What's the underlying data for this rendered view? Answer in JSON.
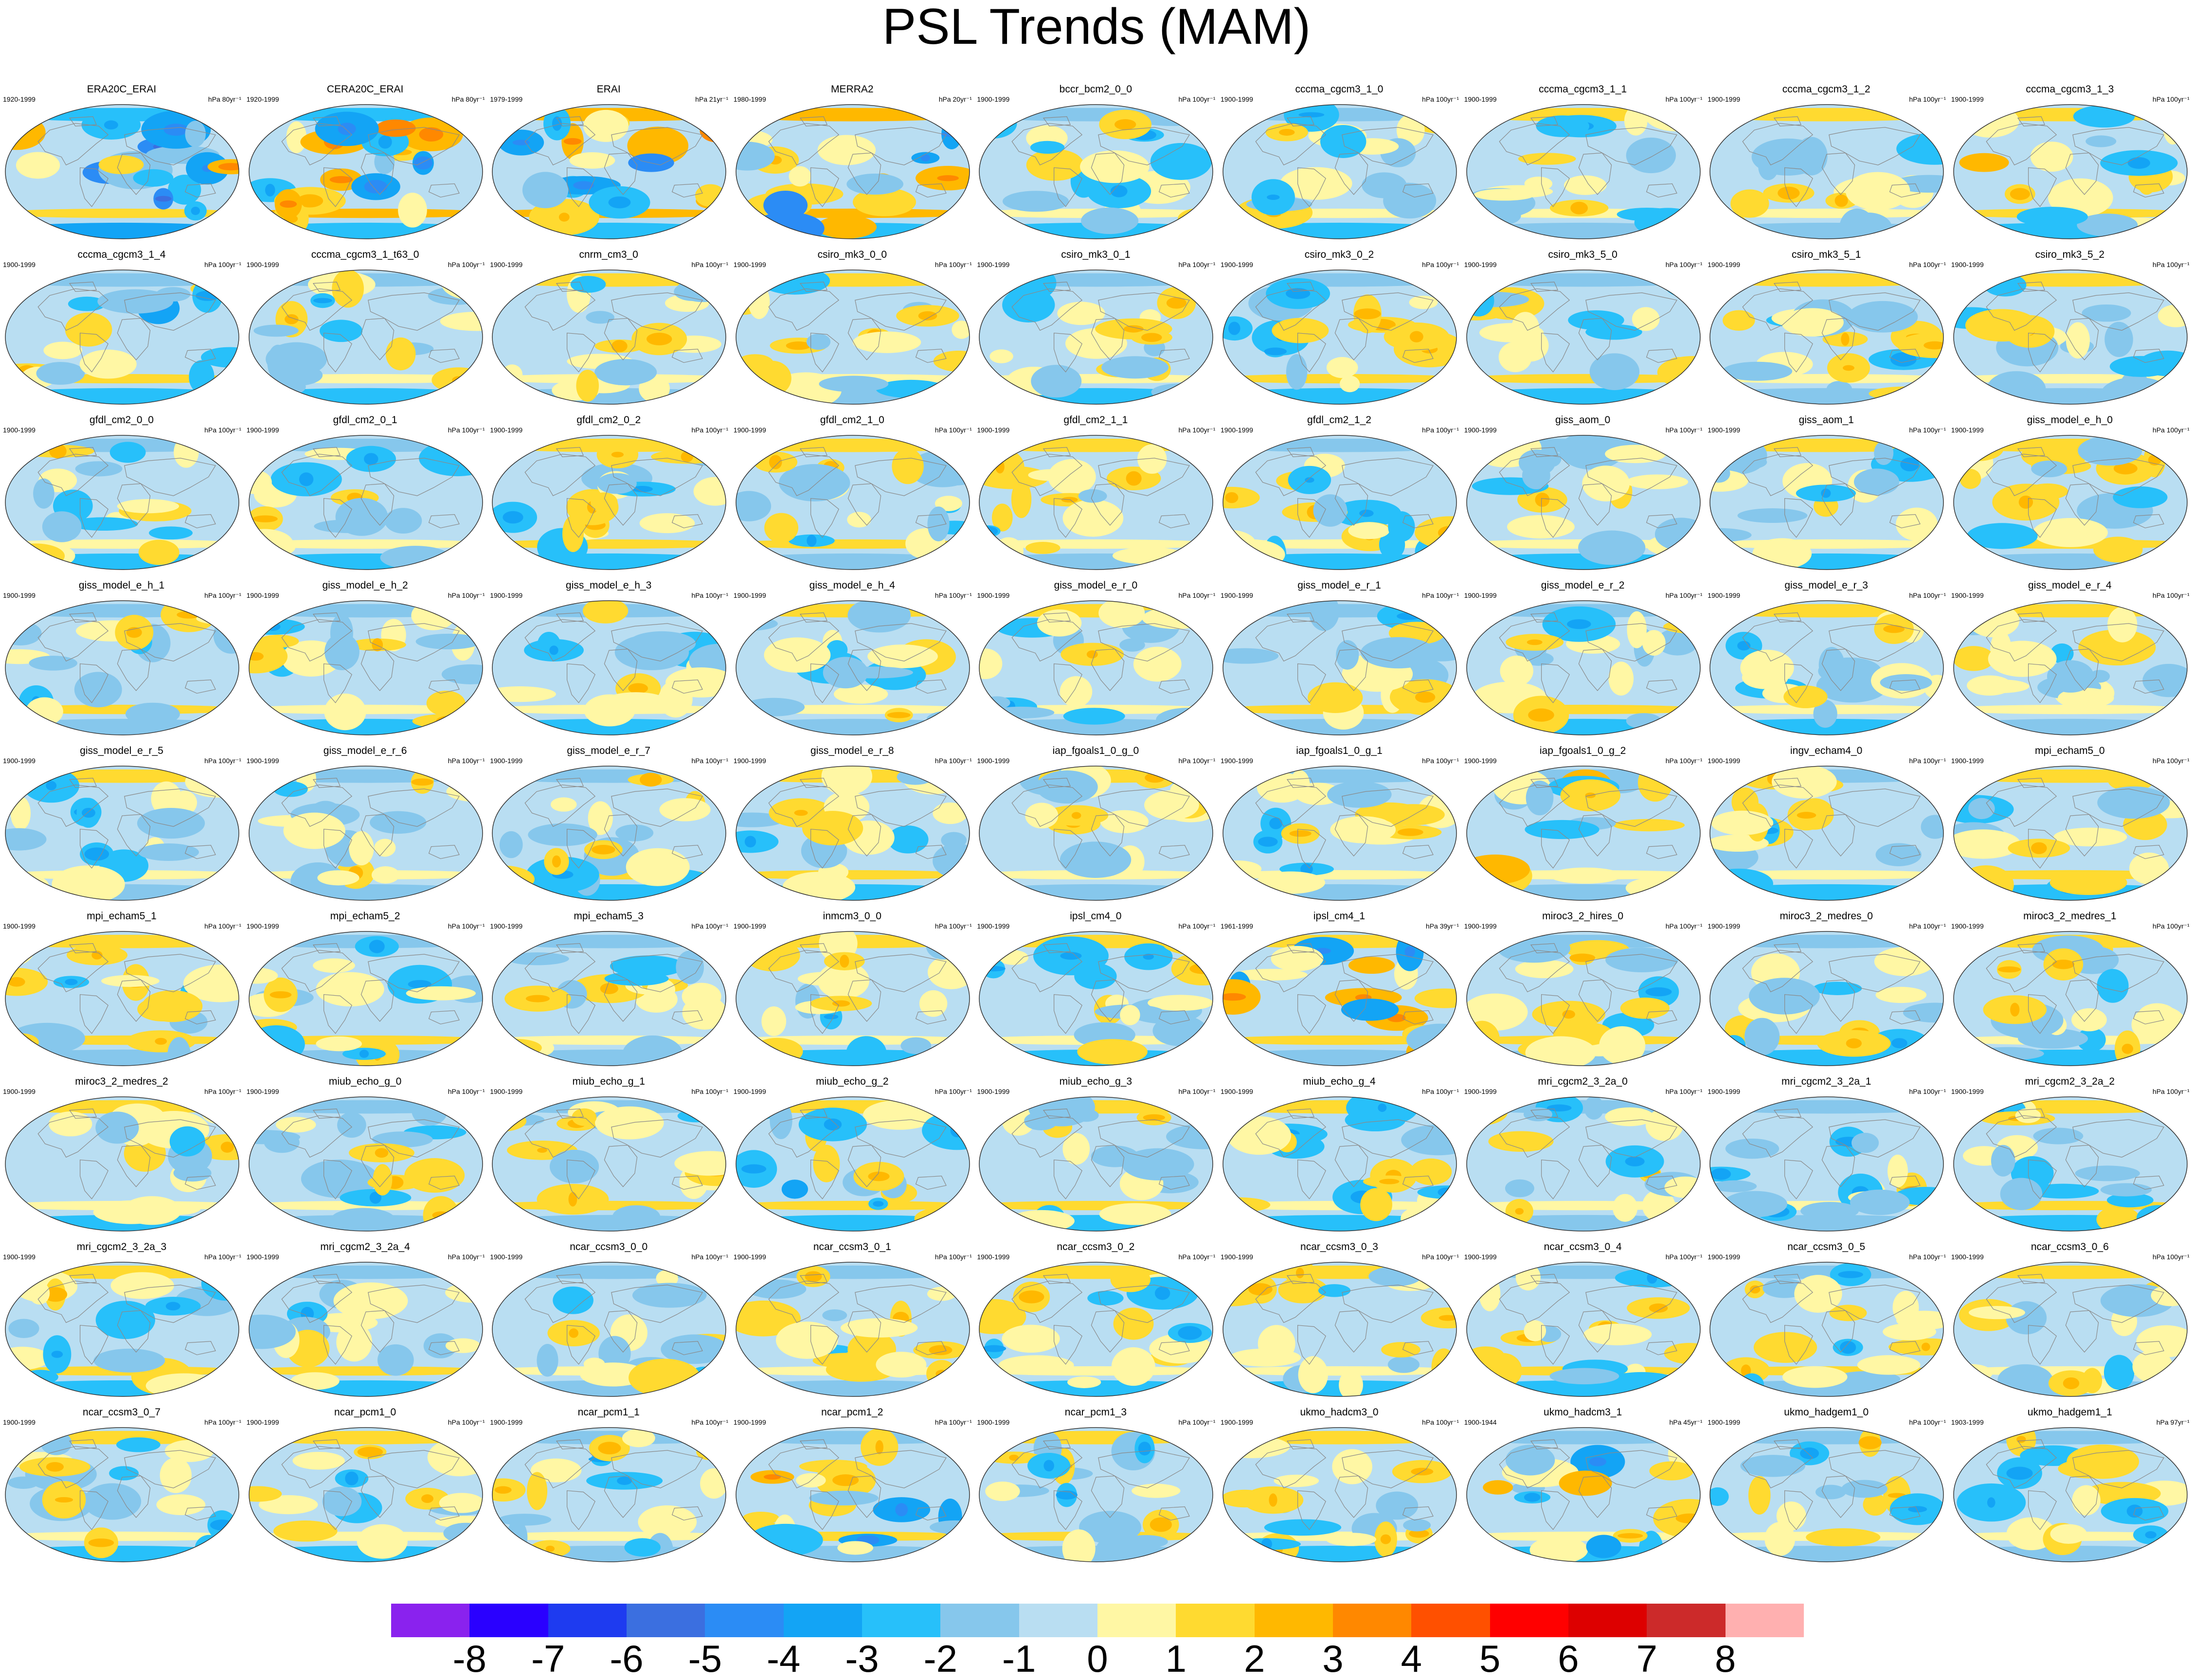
{
  "title": "PSL Trends (MAM)",
  "colors": {
    "land_outline": "#8a8a8a",
    "globe_outline": "#333333",
    "palette": [
      "#8a22ee",
      "#2a00ff",
      "#1e3bf0",
      "#3b6fe0",
      "#2b8cf5",
      "#13a4f5",
      "#27c0fa",
      "#86c7ec",
      "#b9def2",
      "#fff7a4",
      "#ffda30",
      "#ffb800",
      "#ff8800",
      "#ff5000",
      "#ff0000",
      "#dd0000",
      "#cc2a2a",
      "#ffb0b0"
    ]
  },
  "colorbar": {
    "labels": [
      "-8",
      "-7",
      "-6",
      "-5",
      "-4",
      "-3",
      "-2",
      "-1",
      "0",
      "1",
      "2",
      "3",
      "4",
      "5",
      "6",
      "7",
      "8"
    ]
  },
  "panels": [
    {
      "name": "ERA20C_ERAI",
      "years": "1920-1999",
      "units": "hPa 80yr⁻¹",
      "intensity": 1.6
    },
    {
      "name": "CERA20C_ERAI",
      "years": "1920-1999",
      "units": "hPa 80yr⁻¹",
      "intensity": 1.4
    },
    {
      "name": "ERAI",
      "years": "1979-1999",
      "units": "hPa 21yr⁻¹",
      "intensity": 1.5
    },
    {
      "name": "MERRA2",
      "years": "1980-1999",
      "units": "hPa 20yr⁻¹",
      "intensity": 1.6
    },
    {
      "name": "bccr_bcm2_0_0",
      "years": "1900-1999",
      "units": "hPa 100yr⁻¹",
      "intensity": 0.8
    },
    {
      "name": "cccma_cgcm3_1_0",
      "years": "1900-1999",
      "units": "hPa 100yr⁻¹",
      "intensity": 0.8
    },
    {
      "name": "cccma_cgcm3_1_1",
      "years": "1900-1999",
      "units": "hPa 100yr⁻¹",
      "intensity": 0.8
    },
    {
      "name": "cccma_cgcm3_1_2",
      "years": "1900-1999",
      "units": "hPa 100yr⁻¹",
      "intensity": 0.8
    },
    {
      "name": "cccma_cgcm3_1_3",
      "years": "1900-1999",
      "units": "hPa 100yr⁻¹",
      "intensity": 1.0
    },
    {
      "name": "cccma_cgcm3_1_4",
      "years": "1900-1999",
      "units": "hPa 100yr⁻¹",
      "intensity": 1.0
    },
    {
      "name": "cccma_cgcm3_1_t63_0",
      "years": "1900-1999",
      "units": "hPa 100yr⁻¹",
      "intensity": 0.7
    },
    {
      "name": "cnrm_cm3_0",
      "years": "1900-1999",
      "units": "hPa 100yr⁻¹",
      "intensity": 0.8
    },
    {
      "name": "csiro_mk3_0_0",
      "years": "1900-1999",
      "units": "hPa 100yr⁻¹",
      "intensity": 0.8
    },
    {
      "name": "csiro_mk3_0_1",
      "years": "1900-1999",
      "units": "hPa 100yr⁻¹",
      "intensity": 0.8
    },
    {
      "name": "csiro_mk3_0_2",
      "years": "1900-1999",
      "units": "hPa 100yr⁻¹",
      "intensity": 0.8
    },
    {
      "name": "csiro_mk3_5_0",
      "years": "1900-1999",
      "units": "hPa 100yr⁻¹",
      "intensity": 0.8
    },
    {
      "name": "csiro_mk3_5_1",
      "years": "1900-1999",
      "units": "hPa 100yr⁻¹",
      "intensity": 0.8
    },
    {
      "name": "csiro_mk3_5_2",
      "years": "1900-1999",
      "units": "hPa 100yr⁻¹",
      "intensity": 0.8
    },
    {
      "name": "gfdl_cm2_0_0",
      "years": "1900-1999",
      "units": "hPa 100yr⁻¹",
      "intensity": 0.8
    },
    {
      "name": "gfdl_cm2_0_1",
      "years": "1900-1999",
      "units": "hPa 100yr⁻¹",
      "intensity": 0.8
    },
    {
      "name": "gfdl_cm2_0_2",
      "years": "1900-1999",
      "units": "hPa 100yr⁻¹",
      "intensity": 0.9
    },
    {
      "name": "gfdl_cm2_1_0",
      "years": "1900-1999",
      "units": "hPa 100yr⁻¹",
      "intensity": 0.8
    },
    {
      "name": "gfdl_cm2_1_1",
      "years": "1900-1999",
      "units": "hPa 100yr⁻¹",
      "intensity": 0.8
    },
    {
      "name": "gfdl_cm2_1_2",
      "years": "1900-1999",
      "units": "hPa 100yr⁻¹",
      "intensity": 0.8
    },
    {
      "name": "giss_aom_0",
      "years": "1900-1999",
      "units": "hPa 100yr⁻¹",
      "intensity": 0.6
    },
    {
      "name": "giss_aom_1",
      "years": "1900-1999",
      "units": "hPa 100yr⁻¹",
      "intensity": 0.6
    },
    {
      "name": "giss_model_e_h_0",
      "years": "1900-1999",
      "units": "hPa 100yr⁻¹",
      "intensity": 0.8
    },
    {
      "name": "giss_model_e_h_1",
      "years": "1900-1999",
      "units": "hPa 100yr⁻¹",
      "intensity": 0.8
    },
    {
      "name": "giss_model_e_h_2",
      "years": "1900-1999",
      "units": "hPa 100yr⁻¹",
      "intensity": 0.9
    },
    {
      "name": "giss_model_e_h_3",
      "years": "1900-1999",
      "units": "hPa 100yr⁻¹",
      "intensity": 0.6
    },
    {
      "name": "giss_model_e_h_4",
      "years": "1900-1999",
      "units": "hPa 100yr⁻¹",
      "intensity": 0.7
    },
    {
      "name": "giss_model_e_r_0",
      "years": "1900-1999",
      "units": "hPa 100yr⁻¹",
      "intensity": 0.6
    },
    {
      "name": "giss_model_e_r_1",
      "years": "1900-1999",
      "units": "hPa 100yr⁻¹",
      "intensity": 0.6
    },
    {
      "name": "giss_model_e_r_2",
      "years": "1900-1999",
      "units": "hPa 100yr⁻¹",
      "intensity": 0.6
    },
    {
      "name": "giss_model_e_r_3",
      "years": "1900-1999",
      "units": "hPa 100yr⁻¹",
      "intensity": 0.6
    },
    {
      "name": "giss_model_e_r_4",
      "years": "1900-1999",
      "units": "hPa 100yr⁻¹",
      "intensity": 0.6
    },
    {
      "name": "giss_model_e_r_5",
      "years": "1900-1999",
      "units": "hPa 100yr⁻¹",
      "intensity": 0.7
    },
    {
      "name": "giss_model_e_r_6",
      "years": "1900-1999",
      "units": "hPa 100yr⁻¹",
      "intensity": 0.7
    },
    {
      "name": "giss_model_e_r_7",
      "years": "1900-1999",
      "units": "hPa 100yr⁻¹",
      "intensity": 0.6
    },
    {
      "name": "giss_model_e_r_8",
      "years": "1900-1999",
      "units": "hPa 100yr⁻¹",
      "intensity": 0.7
    },
    {
      "name": "iap_fgoals1_0_g_0",
      "years": "1900-1999",
      "units": "hPa 100yr⁻¹",
      "intensity": 0.9
    },
    {
      "name": "iap_fgoals1_0_g_1",
      "years": "1900-1999",
      "units": "hPa 100yr⁻¹",
      "intensity": 0.9
    },
    {
      "name": "iap_fgoals1_0_g_2",
      "years": "1900-1999",
      "units": "hPa 100yr⁻¹",
      "intensity": 1.0
    },
    {
      "name": "ingv_echam4_0",
      "years": "1900-1999",
      "units": "hPa 100yr⁻¹",
      "intensity": 0.8
    },
    {
      "name": "mpi_echam5_0",
      "years": "1900-1999",
      "units": "hPa 100yr⁻¹",
      "intensity": 0.8
    },
    {
      "name": "mpi_echam5_1",
      "years": "1900-1999",
      "units": "hPa 100yr⁻¹",
      "intensity": 0.9
    },
    {
      "name": "mpi_echam5_2",
      "years": "1900-1999",
      "units": "hPa 100yr⁻¹",
      "intensity": 0.8
    },
    {
      "name": "mpi_echam5_3",
      "years": "1900-1999",
      "units": "hPa 100yr⁻¹",
      "intensity": 0.8
    },
    {
      "name": "inmcm3_0_0",
      "years": "1900-1999",
      "units": "hPa 100yr⁻¹",
      "intensity": 0.8
    },
    {
      "name": "ipsl_cm4_0",
      "years": "1900-1999",
      "units": "hPa 100yr⁻¹",
      "intensity": 0.9
    },
    {
      "name": "ipsl_cm4_1",
      "years": "1961-1999",
      "units": "hPa 39yr⁻¹",
      "intensity": 1.2
    },
    {
      "name": "miroc3_2_hires_0",
      "years": "1900-1999",
      "units": "hPa 100yr⁻¹",
      "intensity": 0.9
    },
    {
      "name": "miroc3_2_medres_0",
      "years": "1900-1999",
      "units": "hPa 100yr⁻¹",
      "intensity": 0.8
    },
    {
      "name": "miroc3_2_medres_1",
      "years": "1900-1999",
      "units": "hPa 100yr⁻¹",
      "intensity": 0.8
    },
    {
      "name": "miroc3_2_medres_2",
      "years": "1900-1999",
      "units": "hPa 100yr⁻¹",
      "intensity": 0.7
    },
    {
      "name": "miub_echo_g_0",
      "years": "1900-1999",
      "units": "hPa 100yr⁻¹",
      "intensity": 0.9
    },
    {
      "name": "miub_echo_g_1",
      "years": "1900-1999",
      "units": "hPa 100yr⁻¹",
      "intensity": 0.8
    },
    {
      "name": "miub_echo_g_2",
      "years": "1900-1999",
      "units": "hPa 100yr⁻¹",
      "intensity": 1.0
    },
    {
      "name": "miub_echo_g_3",
      "years": "1900-1999",
      "units": "hPa 100yr⁻¹",
      "intensity": 0.8
    },
    {
      "name": "miub_echo_g_4",
      "years": "1900-1999",
      "units": "hPa 100yr⁻¹",
      "intensity": 0.8
    },
    {
      "name": "mri_cgcm2_3_2a_0",
      "years": "1900-1999",
      "units": "hPa 100yr⁻¹",
      "intensity": 0.8
    },
    {
      "name": "mri_cgcm2_3_2a_1",
      "years": "1900-1999",
      "units": "hPa 100yr⁻¹",
      "intensity": 0.8
    },
    {
      "name": "mri_cgcm2_3_2a_2",
      "years": "1900-1999",
      "units": "hPa 100yr⁻¹",
      "intensity": 0.8
    },
    {
      "name": "mri_cgcm2_3_2a_3",
      "years": "1900-1999",
      "units": "hPa 100yr⁻¹",
      "intensity": 0.8
    },
    {
      "name": "mri_cgcm2_3_2a_4",
      "years": "1900-1999",
      "units": "hPa 100yr⁻¹",
      "intensity": 0.8
    },
    {
      "name": "ncar_ccsm3_0_0",
      "years": "1900-1999",
      "units": "hPa 100yr⁻¹",
      "intensity": 0.8
    },
    {
      "name": "ncar_ccsm3_0_1",
      "years": "1900-1999",
      "units": "hPa 100yr⁻¹",
      "intensity": 0.9
    },
    {
      "name": "ncar_ccsm3_0_2",
      "years": "1900-1999",
      "units": "hPa 100yr⁻¹",
      "intensity": 0.8
    },
    {
      "name": "ncar_ccsm3_0_3",
      "years": "1900-1999",
      "units": "hPa 100yr⁻¹",
      "intensity": 0.8
    },
    {
      "name": "ncar_ccsm3_0_4",
      "years": "1900-1999",
      "units": "hPa 100yr⁻¹",
      "intensity": 0.8
    },
    {
      "name": "ncar_ccsm3_0_5",
      "years": "1900-1999",
      "units": "hPa 100yr⁻¹",
      "intensity": 0.8
    },
    {
      "name": "ncar_ccsm3_0_6",
      "years": "1900-1999",
      "units": "hPa 100yr⁻¹",
      "intensity": 0.8
    },
    {
      "name": "ncar_ccsm3_0_7",
      "years": "1900-1999",
      "units": "hPa 100yr⁻¹",
      "intensity": 0.8
    },
    {
      "name": "ncar_pcm1_0",
      "years": "1900-1999",
      "units": "hPa 100yr⁻¹",
      "intensity": 0.8
    },
    {
      "name": "ncar_pcm1_1",
      "years": "1900-1999",
      "units": "hPa 100yr⁻¹",
      "intensity": 0.9
    },
    {
      "name": "ncar_pcm1_2",
      "years": "1900-1999",
      "units": "hPa 100yr⁻¹",
      "intensity": 1.0
    },
    {
      "name": "ncar_pcm1_3",
      "years": "1900-1999",
      "units": "hPa 100yr⁻¹",
      "intensity": 0.8
    },
    {
      "name": "ukmo_hadcm3_0",
      "years": "1900-1999",
      "units": "hPa 100yr⁻¹",
      "intensity": 0.9
    },
    {
      "name": "ukmo_hadcm3_1",
      "years": "1900-1944",
      "units": "hPa 45yr⁻¹",
      "intensity": 1.2
    },
    {
      "name": "ukmo_hadgem1_0",
      "years": "1900-1999",
      "units": "hPa 100yr⁻¹",
      "intensity": 0.8
    },
    {
      "name": "ukmo_hadgem1_1",
      "years": "1903-1999",
      "units": "hPa 97yr⁻¹",
      "intensity": 0.9
    }
  ]
}
